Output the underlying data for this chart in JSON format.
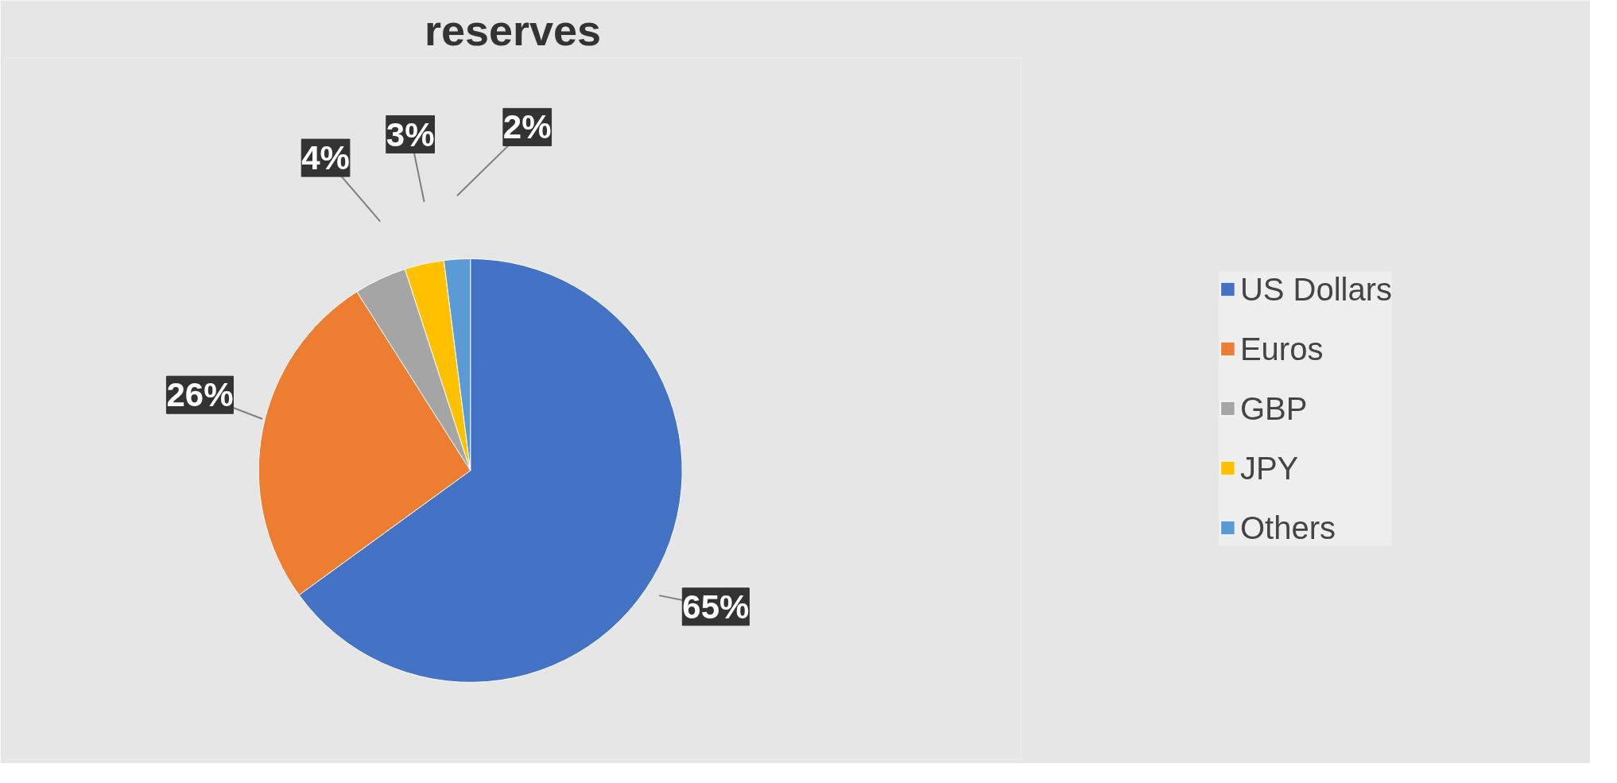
{
  "chart_data": {
    "type": "pie",
    "title": "reserves",
    "categories": [
      "US Dollars",
      "Euros",
      "GBP",
      "JPY",
      "Others"
    ],
    "values": [
      65,
      26,
      4,
      3,
      2
    ],
    "colors": [
      "#4472c4",
      "#ed7d31",
      "#a5a5a5",
      "#ffc000",
      "#5b9bd5"
    ],
    "value_labels": [
      "65%",
      "26%",
      "4%",
      "3%",
      "2%"
    ],
    "legend": "right"
  }
}
